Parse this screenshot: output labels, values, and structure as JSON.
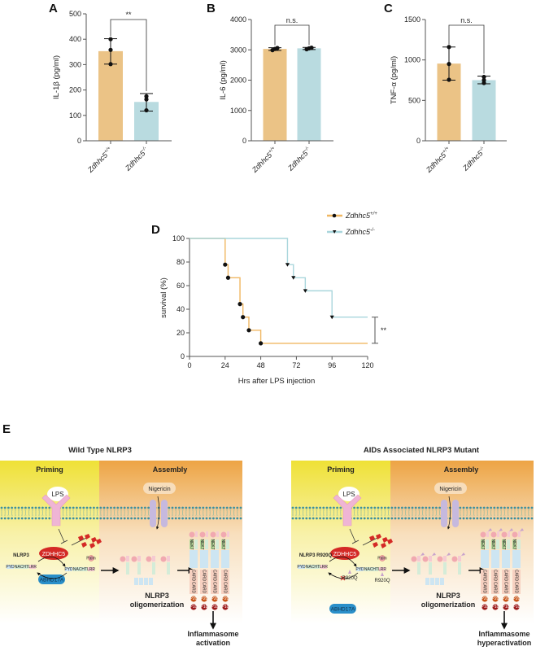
{
  "panels": {
    "A": "A",
    "B": "B",
    "C": "C",
    "D": "D",
    "E": "E"
  },
  "colors": {
    "wild_type": "#ebc386",
    "knockout": "#b9dbe0",
    "wild_type_line": "#f0b762",
    "knockout_line": "#a9d6dc",
    "points": "#111111",
    "zdhhc5": "#d42a26",
    "abhd17a": "#2a8fc9",
    "priming_bg": "#f0e23a",
    "assembly_bg": "#eea646"
  },
  "chart_data": [
    {
      "panel": "A",
      "type": "bar",
      "ylabel": "IL-1β (pg/ml)",
      "ylim": [
        0,
        500
      ],
      "yticks": [
        0,
        100,
        200,
        300,
        400,
        500
      ],
      "categories": [
        {
          "gene": "Zdhhc5",
          "genotype": "+/+"
        },
        {
          "gene": "Zdhhc5",
          "genotype": "-/-"
        }
      ],
      "values": [
        353,
        153
      ],
      "points": [
        [
          400,
          358,
          302
        ],
        [
          175,
          163,
          120
        ]
      ],
      "error": [
        [
          302,
          402
        ],
        [
          117,
          186
        ]
      ],
      "significance": "**"
    },
    {
      "panel": "B",
      "type": "bar",
      "ylabel": "IL-6 (pg/ml)",
      "ylim": [
        0,
        4000
      ],
      "yticks": [
        0,
        1000,
        2000,
        3000,
        4000
      ],
      "categories": [
        {
          "gene": "Zdhhc5",
          "genotype": "+/+"
        },
        {
          "gene": "Zdhhc5",
          "genotype": "-/-"
        }
      ],
      "values": [
        3030,
        3050
      ],
      "points": [
        [
          2990,
          3030,
          3060
        ],
        [
          3020,
          3050,
          3070
        ]
      ],
      "error": [
        [
          2980,
          3070
        ],
        [
          3010,
          3080
        ]
      ],
      "significance": "n.s."
    },
    {
      "panel": "C",
      "type": "bar",
      "ylabel": "TNF-α (pg/ml)",
      "ylim": [
        0,
        1500
      ],
      "yticks": [
        0,
        500,
        1000,
        1500
      ],
      "categories": [
        {
          "gene": "Zdhhc5",
          "genotype": "+/+"
        },
        {
          "gene": "Zdhhc5",
          "genotype": "-/-"
        }
      ],
      "values": [
        955,
        750
      ],
      "points": [
        [
          1160,
          950,
          755
        ],
        [
          790,
          750,
          715
        ]
      ],
      "error": [
        [
          750,
          1160
        ],
        [
          705,
          800
        ]
      ],
      "significance": "n.s."
    },
    {
      "panel": "D",
      "type": "line",
      "step": true,
      "xlabel": "Hrs after LPS  injection",
      "ylabel": "survival (%)",
      "xlim": [
        0,
        120
      ],
      "ylim": [
        0,
        100
      ],
      "xticks": [
        0,
        24,
        48,
        72,
        96,
        120
      ],
      "yticks": [
        0,
        20,
        40,
        60,
        80,
        100
      ],
      "legend": "top-right",
      "significance": "**",
      "series": [
        {
          "name": {
            "gene": "Zdhhc5",
            "genotype": "+/+"
          },
          "marker": "circle",
          "events": [
            [
              24,
              77.8
            ],
            [
              26,
              66.7
            ],
            [
              34,
              44.4
            ],
            [
              36,
              33.3
            ],
            [
              40,
              22.2
            ],
            [
              48,
              11.1
            ]
          ],
          "end": 120
        },
        {
          "name": {
            "gene": "Zdhhc5",
            "genotype": "-/-"
          },
          "marker": "triangle-down",
          "events": [
            [
              66,
              77.8
            ],
            [
              70,
              66.7
            ],
            [
              78,
              55.6
            ],
            [
              96,
              33.3
            ]
          ],
          "end": 120
        }
      ]
    }
  ],
  "diagram": {
    "left": {
      "title": "Wild Type NLRP3",
      "priming": "Priming",
      "assembly": "Assembly",
      "lps": "LPS",
      "nigericin": "Nigericin",
      "zdhhc5": "ZDHHC5",
      "abhd17a": "ABHD17A",
      "nlrp3": "NLRP3",
      "mutation": "",
      "oligomer_label": [
        "NLRP3",
        "oligomerization"
      ],
      "outcome": [
        "Inflammasome",
        "activation"
      ]
    },
    "right": {
      "title": "AIDs Associated NLRP3 Mutant",
      "priming": "Priming",
      "assembly": "Assembly",
      "lps": "LPS",
      "nigericin": "Nigericin",
      "zdhhc5": "ZDHHC5",
      "abhd17a": "ABHD17A",
      "nlrp3": "NLRP3 R920Q",
      "mutation": "R920Q",
      "oligomer_label": [
        "NLRP3",
        "oligomerization"
      ],
      "outcome": [
        "Inflammasome",
        "hyperactivation"
      ]
    },
    "domains": {
      "pyd": "PYD",
      "nacht": "NACHT",
      "lrr": "LRR",
      "palm": "Palm",
      "nek7": "NEK7",
      "card": "CARD",
      "p20": "P20",
      "p10": "P10"
    }
  }
}
